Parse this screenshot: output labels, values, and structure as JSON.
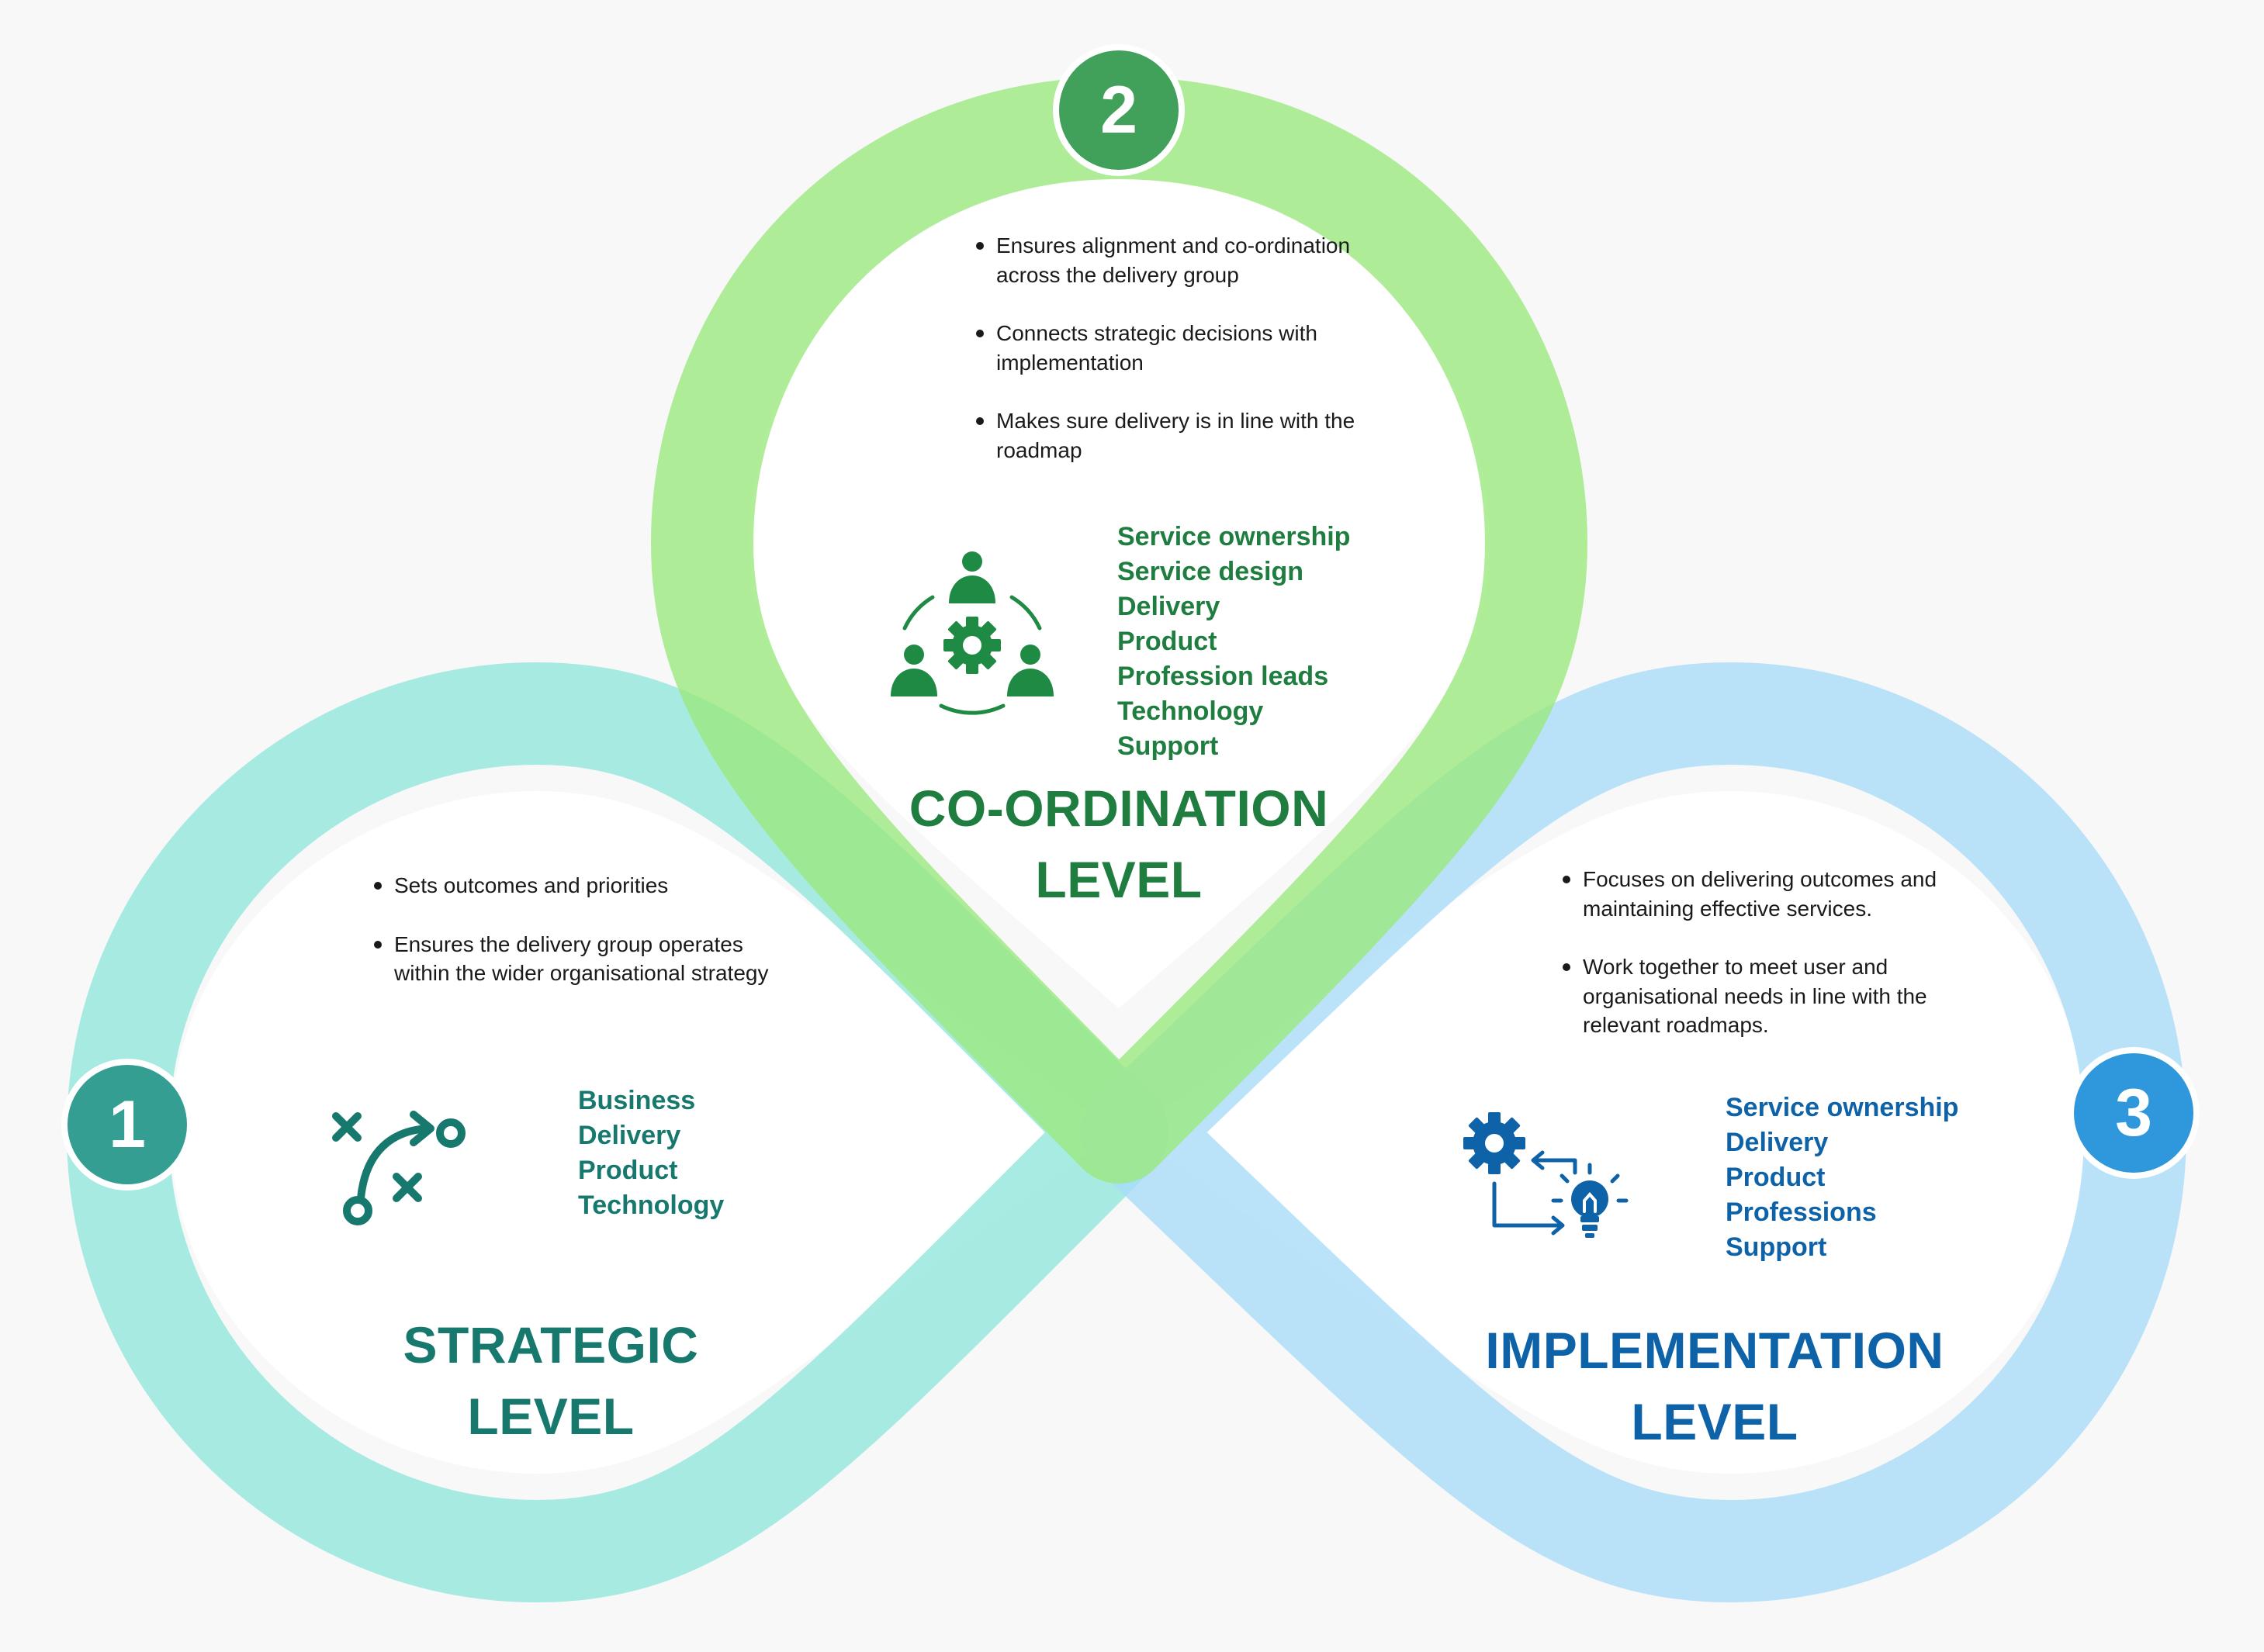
{
  "colors": {
    "coordination": "#1e7d3f",
    "strategic": "#17786e",
    "implementation": "#0e62a8",
    "badge_1": "#359e93",
    "badge_2": "#41a05a",
    "badge_3": "#2f97dc",
    "ring_green": "#9be97f",
    "ring_teal": "#8fe6da",
    "ring_blue": "#a7dbf8"
  },
  "coordination": {
    "badge": "2",
    "bullets": [
      "Ensures alignment and co-ordination across the delivery group",
      "Connects strategic decisions with implementation",
      "Makes sure delivery is in line with the roadmap"
    ],
    "roles": [
      "Service ownership",
      "Service design",
      "Delivery",
      "Product",
      "Profession leads",
      "Technology",
      "Support"
    ],
    "title_line1": "CO-ORDINATION",
    "title_line2": "LEVEL",
    "icon": "team-gear-icon"
  },
  "strategic": {
    "badge": "1",
    "bullets": [
      "Sets outcomes and priorities",
      "Ensures the delivery group operates within the wider organisational strategy"
    ],
    "roles": [
      "Business",
      "Delivery",
      "Product",
      "Technology"
    ],
    "title_line1": "STRATEGIC",
    "title_line2": "LEVEL",
    "icon": "strategy-play-icon"
  },
  "implementation": {
    "badge": "3",
    "bullets": [
      "Focuses on delivering outcomes and maintaining effective services.",
      "Work together to meet user and organisational needs in line with the relevant roadmaps."
    ],
    "roles": [
      "Service ownership",
      "Delivery",
      "Product",
      "Professions",
      "Support"
    ],
    "title_line1": "IMPLEMENTATION",
    "title_line2": "LEVEL",
    "icon": "gear-idea-cycle-icon"
  }
}
